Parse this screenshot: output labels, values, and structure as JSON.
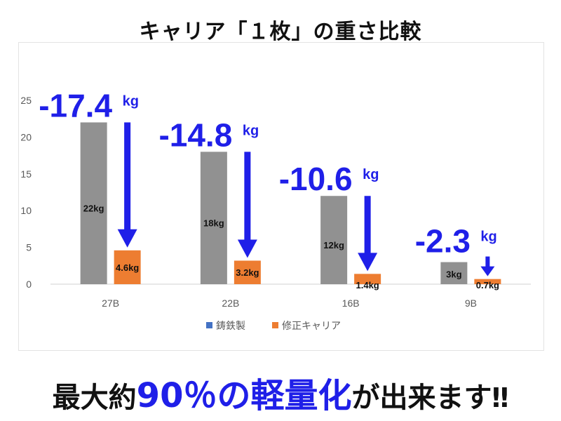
{
  "title": "キャリア「１枚」の重さ比較",
  "chart_data": {
    "type": "bar",
    "categories": [
      "27B",
      "22B",
      "16B",
      "9B"
    ],
    "series": [
      {
        "name": "鋳鉄製",
        "color": "#919191",
        "values": [
          22,
          18,
          12,
          3
        ],
        "labels": [
          "22kg",
          "18kg",
          "12kg",
          "3kg"
        ]
      },
      {
        "name": "修正キャリア",
        "color": "#ed7d31",
        "values": [
          4.6,
          3.2,
          1.4,
          0.7
        ],
        "labels": [
          "4.6kg",
          "3.2kg",
          "1.4kg",
          "0.7kg"
        ]
      }
    ],
    "legend_colors": [
      "#4472c4",
      "#ed7d31"
    ],
    "ylim": [
      0,
      25
    ],
    "yticks": [
      0,
      5,
      10,
      15,
      20,
      25
    ],
    "annotations": [
      {
        "value": "-17.4",
        "unit": "kg"
      },
      {
        "value": "-14.8",
        "unit": "kg"
      },
      {
        "value": "-10.6",
        "unit": "kg"
      },
      {
        "value": "-2.3",
        "unit": "kg"
      }
    ],
    "annotation_color": "#1f1fe8",
    "legend_position": "bottom"
  },
  "footer": {
    "prefix": "最大約",
    "highlight": "90％の軽量化",
    "suffix": "が出来ます",
    "exclaim": "‼"
  }
}
